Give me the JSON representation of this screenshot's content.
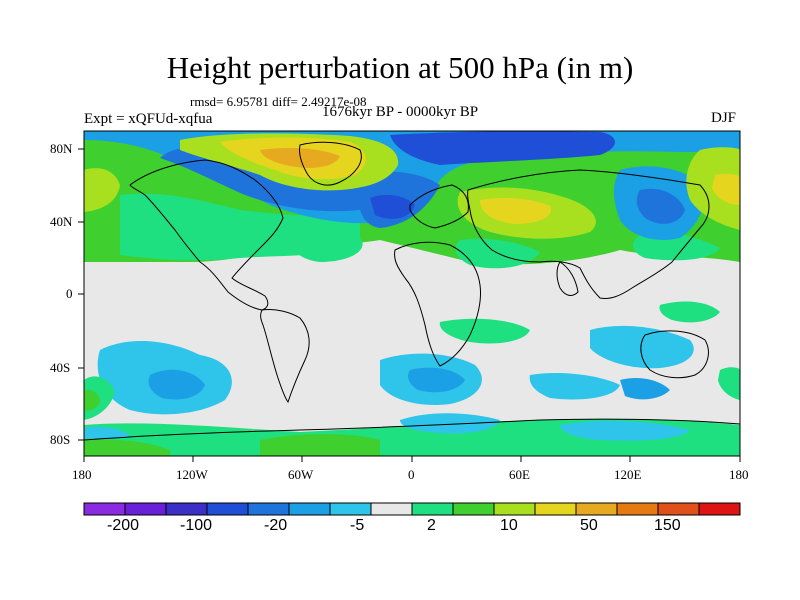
{
  "title": "Height perturbation at 500 hPa (in m)",
  "stats": "rmsd= 6.95781 diff= 2.49217e-08",
  "period": "1676kyr BP - 0000kyr BP",
  "experiment": "Expt = xQFUd-xqfua",
  "season": "DJF",
  "lat_labels": [
    "80N",
    "40N",
    "0",
    "40S",
    "80S"
  ],
  "lon_labels": [
    "180",
    "120W",
    "60W",
    "0",
    "60E",
    "120E",
    "180"
  ],
  "colorbar": {
    "colors": [
      "#8a2be2",
      "#6a1fd9",
      "#3c2fc8",
      "#1f4fd6",
      "#1f74dc",
      "#1ba0e6",
      "#2fc5ea",
      "#e8e8e8",
      "#1fe080",
      "#3fcf2f",
      "#a8e01f",
      "#e6d51f",
      "#e6a91f",
      "#e57a12",
      "#e0501a",
      "#dc1414"
    ],
    "labels": [
      "-200",
      "-100",
      "-20",
      "-5",
      "2",
      "10",
      "50",
      "150"
    ]
  }
}
